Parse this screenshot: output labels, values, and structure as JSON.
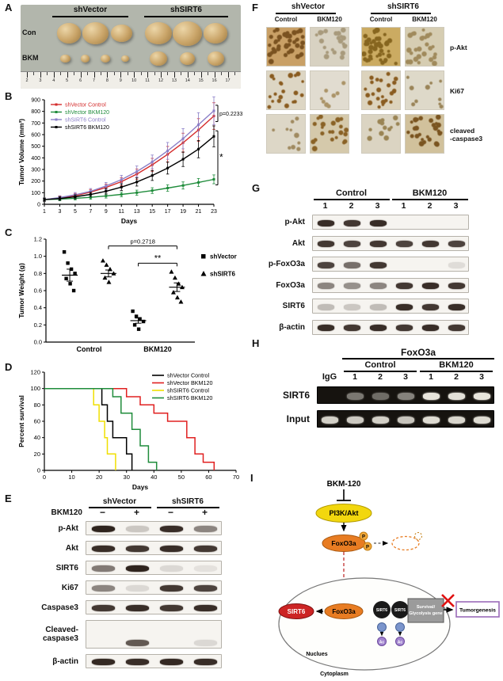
{
  "panelA": {
    "letter": "A",
    "groups": [
      "shVector",
      "shSIRT6"
    ],
    "row_labels": [
      "Con",
      "BKM"
    ],
    "ruler_numbers": [
      "2",
      "3",
      "4",
      "5",
      "6",
      "7",
      "8",
      "9",
      "10",
      "11",
      "12",
      "13",
      "14",
      "15",
      "16",
      "17"
    ],
    "tumor_rows": [
      {
        "row": "Con",
        "shVector": [
          30,
          33,
          27
        ],
        "shSIRT6": [
          34,
          37,
          30
        ]
      },
      {
        "row": "BKM",
        "shVector": [
          13,
          11,
          12,
          10
        ],
        "shSIRT6": [
          22,
          19,
          21
        ]
      }
    ]
  },
  "panelB": {
    "letter": "B",
    "chart": {
      "type": "line",
      "x": [
        1,
        3,
        5,
        7,
        9,
        11,
        13,
        15,
        17,
        19,
        21,
        23
      ],
      "series": [
        {
          "name": "shVector Control",
          "color": "#d42b2b",
          "values": [
            40,
            55,
            75,
            105,
            145,
            195,
            260,
            340,
            430,
            530,
            640,
            760
          ]
        },
        {
          "name": "shVector BKM120",
          "color": "#1f8c3b",
          "values": [
            40,
            45,
            52,
            60,
            72,
            85,
            100,
            118,
            140,
            162,
            188,
            215
          ]
        },
        {
          "name": "shSIRT6 Control",
          "color": "#8b7fc7",
          "values": [
            40,
            58,
            82,
            112,
            158,
            212,
            282,
            365,
            460,
            565,
            685,
            805
          ]
        },
        {
          "name": "shSIRT6 BKM120",
          "color": "#000000",
          "values": [
            40,
            50,
            65,
            85,
            112,
            148,
            192,
            248,
            312,
            388,
            475,
            585
          ]
        }
      ],
      "ylim": [
        0,
        900
      ],
      "ystep": 100,
      "ylabel": "Tumor Volume (mm³)",
      "xlabel": "Days",
      "brackets": [
        {
          "a": 2,
          "b": 0,
          "label": "p=0.2233"
        },
        {
          "a": 3,
          "b": 1,
          "label": "*"
        }
      ]
    }
  },
  "panelC": {
    "letter": "C",
    "chart": {
      "type": "scatter",
      "ylabel": "Tumor Weight (g)",
      "ylim": [
        0,
        1.2
      ],
      "ystep": 0.2,
      "group_labels": [
        "Control",
        "BKM120"
      ],
      "clusters": [
        {
          "group": "Control",
          "series": "shVector",
          "marker": "square",
          "points": [
            1.05,
            0.92,
            0.85,
            0.8,
            0.74,
            0.68,
            0.6
          ],
          "mean": 0.78,
          "sem": 0.07
        },
        {
          "group": "Control",
          "series": "shSIRT6",
          "marker": "triangle",
          "points": [
            0.95,
            0.9,
            0.85,
            0.8,
            0.75,
            0.7
          ],
          "mean": 0.8,
          "sem": 0.04
        },
        {
          "group": "BKM120",
          "series": "shVector",
          "marker": "square",
          "points": [
            0.36,
            0.3,
            0.27,
            0.24,
            0.2,
            0.15
          ],
          "mean": 0.25,
          "sem": 0.03
        },
        {
          "group": "BKM120",
          "series": "shSIRT6",
          "marker": "triangle",
          "points": [
            0.82,
            0.75,
            0.68,
            0.64,
            0.58,
            0.52,
            0.47
          ],
          "mean": 0.64,
          "sem": 0.05
        }
      ],
      "legend": [
        {
          "marker": "square",
          "label": "shVector"
        },
        {
          "marker": "triangle",
          "label": "shSIRT6"
        }
      ],
      "brackets": [
        {
          "a": 1,
          "b": 3,
          "label": "p=0.2718",
          "y": 1.12
        },
        {
          "a": 2,
          "b": 3,
          "label": "**",
          "y": 0.92
        }
      ]
    }
  },
  "panelD": {
    "letter": "D",
    "chart": {
      "type": "step",
      "xlabel": "Days",
      "ylabel": "Percent survival",
      "xlim": [
        0,
        70
      ],
      "xstep": 10,
      "ylim": [
        0,
        120
      ],
      "ystep": 20,
      "series": [
        {
          "name": "shVector Control",
          "color": "#000000",
          "steps": [
            [
              0,
              100
            ],
            [
              21,
              100
            ],
            [
              21,
              80
            ],
            [
              23,
              80
            ],
            [
              23,
              60
            ],
            [
              25,
              60
            ],
            [
              25,
              40
            ],
            [
              30,
              40
            ],
            [
              30,
              20
            ],
            [
              32,
              20
            ],
            [
              32,
              0
            ]
          ]
        },
        {
          "name": "shVector BKM120",
          "color": "#e02020",
          "steps": [
            [
              0,
              100
            ],
            [
              30,
              100
            ],
            [
              30,
              90
            ],
            [
              35,
              90
            ],
            [
              35,
              80
            ],
            [
              40,
              80
            ],
            [
              40,
              70
            ],
            [
              45,
              70
            ],
            [
              45,
              60
            ],
            [
              52,
              60
            ],
            [
              52,
              40
            ],
            [
              55,
              40
            ],
            [
              55,
              20
            ],
            [
              58,
              20
            ],
            [
              58,
              10
            ],
            [
              62,
              10
            ],
            [
              62,
              0
            ]
          ]
        },
        {
          "name": "shSIRT6 Control",
          "color": "#f0df00",
          "steps": [
            [
              0,
              100
            ],
            [
              18,
              100
            ],
            [
              18,
              80
            ],
            [
              20,
              80
            ],
            [
              20,
              60
            ],
            [
              22,
              60
            ],
            [
              22,
              40
            ],
            [
              23,
              40
            ],
            [
              23,
              20
            ],
            [
              26,
              20
            ],
            [
              26,
              0
            ]
          ]
        },
        {
          "name": "shSIRT6 BKM120",
          "color": "#1f8c3b",
          "steps": [
            [
              0,
              100
            ],
            [
              25,
              100
            ],
            [
              25,
              90
            ],
            [
              28,
              90
            ],
            [
              28,
              70
            ],
            [
              32,
              70
            ],
            [
              32,
              50
            ],
            [
              35,
              50
            ],
            [
              35,
              30
            ],
            [
              38,
              30
            ],
            [
              38,
              10
            ],
            [
              41,
              10
            ],
            [
              41,
              0
            ]
          ]
        }
      ]
    }
  },
  "panelE": {
    "letter": "E",
    "group_headers": [
      "shVector",
      "shSIRT6"
    ],
    "lane_header": "BKM120",
    "lane_signs": [
      "−",
      "+",
      "−",
      "+"
    ],
    "rows": [
      {
        "label": "p-Akt",
        "bands": [
          0.95,
          0.2,
          0.9,
          0.5
        ]
      },
      {
        "label": "Akt",
        "bands": [
          0.9,
          0.85,
          0.9,
          0.85
        ]
      },
      {
        "label": "SIRT6",
        "bands": [
          0.55,
          0.95,
          0.12,
          0.08
        ]
      },
      {
        "label": "Ki67",
        "bands": [
          0.5,
          0.12,
          0.85,
          0.8
        ]
      },
      {
        "label": "Caspase3",
        "bands": [
          0.85,
          0.9,
          0.85,
          0.9
        ]
      },
      {
        "label_lines": [
          "Cleaved-",
          "caspase3"
        ],
        "bands": [
          0.04,
          0.7,
          0.04,
          0.12
        ],
        "tall": true
      },
      {
        "label": "β-actin",
        "bands": [
          0.92,
          0.9,
          0.92,
          0.9
        ]
      }
    ]
  },
  "panelF": {
    "letter": "F",
    "groups": [
      "shVector",
      "shSIRT6"
    ],
    "sub_headers": [
      "Control",
      "BKM120",
      "Control",
      "BKM120"
    ],
    "rows": [
      {
        "label_lines": [
          "p-Akt"
        ],
        "cells": [
          {
            "bg": "#c9a066",
            "dot": "#7a5220",
            "n": 40
          },
          {
            "bg": "#d8d2c2",
            "dot": "#a89a7c",
            "n": 22
          },
          {
            "bg": "#cbab62",
            "dot": "#86651f",
            "n": 40
          },
          {
            "bg": "#d6cdb2",
            "dot": "#a08a5c",
            "n": 26
          }
        ]
      },
      {
        "label_lines": [
          "Ki67"
        ],
        "cells": [
          {
            "bg": "#ddd6c4",
            "dot": "#8a5c20",
            "n": 20
          },
          {
            "bg": "#e1dcd0",
            "dot": "#ab9468",
            "n": 8
          },
          {
            "bg": "#dcd3bd",
            "dot": "#8a5c20",
            "n": 24
          },
          {
            "bg": "#ded9c9",
            "dot": "#9a8458",
            "n": 10
          }
        ]
      },
      {
        "label_lines": [
          "cleaved",
          "-caspase3"
        ],
        "cells": [
          {
            "bg": "#ddd7c7",
            "dot": "#a08a60",
            "n": 10
          },
          {
            "bg": "#d5c9ab",
            "dot": "#8a6226",
            "n": 22
          },
          {
            "bg": "#dbd4c2",
            "dot": "#9a8454",
            "n": 12
          },
          {
            "bg": "#d1c19c",
            "dot": "#7a5420",
            "n": 26
          }
        ]
      }
    ]
  },
  "panelG": {
    "letter": "G",
    "group_headers": [
      "Control",
      "BKM120"
    ],
    "lane_numbers": [
      "1",
      "2",
      "3",
      "1",
      "2",
      "3"
    ],
    "rows": [
      {
        "label": "p-Akt",
        "bands": [
          0.9,
          0.85,
          0.9,
          0.05,
          0.03,
          0.03
        ]
      },
      {
        "label": "Akt",
        "bands": [
          0.85,
          0.8,
          0.85,
          0.8,
          0.85,
          0.8
        ]
      },
      {
        "label": "p-FoxO3a",
        "bands": [
          0.8,
          0.6,
          0.85,
          0.05,
          0.05,
          0.1
        ]
      },
      {
        "label": "FoxO3a",
        "bands": [
          0.5,
          0.45,
          0.5,
          0.85,
          0.9,
          0.85
        ]
      },
      {
        "label": "SIRT6",
        "bands": [
          0.25,
          0.2,
          0.25,
          0.9,
          0.85,
          0.9
        ]
      },
      {
        "label": "β-actin",
        "bands": [
          0.9,
          0.85,
          0.9,
          0.85,
          0.9,
          0.85
        ]
      }
    ]
  },
  "panelH": {
    "letter": "H",
    "title": "FoxO3a",
    "group_headers": [
      "Control",
      "BKM120"
    ],
    "igg_label": "IgG",
    "lane_numbers": [
      "1",
      "2",
      "3",
      "1",
      "2",
      "3"
    ],
    "rows": [
      {
        "label": "SIRT6",
        "bands": [
          0.05,
          0.45,
          0.4,
          0.5,
          0.95,
          0.92,
          0.95
        ]
      },
      {
        "label": "Input",
        "bands": [
          0.85,
          0.82,
          0.85,
          0.8,
          0.9,
          0.88,
          0.9
        ]
      }
    ]
  },
  "panelI": {
    "letter": "I",
    "labels": {
      "bkm": "BKM-120",
      "pi3k": "PI3K/Akt",
      "foxo3a": "FoxO3a",
      "sirt6": "SIRT6",
      "p": "P",
      "gene1": "Survival/",
      "gene2": "Glycolysis gene",
      "tumorgenesis": "Tumorgenesis",
      "nucleus": "Nuclues",
      "cytoplasm": "Cytoplasm",
      "ac": "Ac"
    }
  }
}
